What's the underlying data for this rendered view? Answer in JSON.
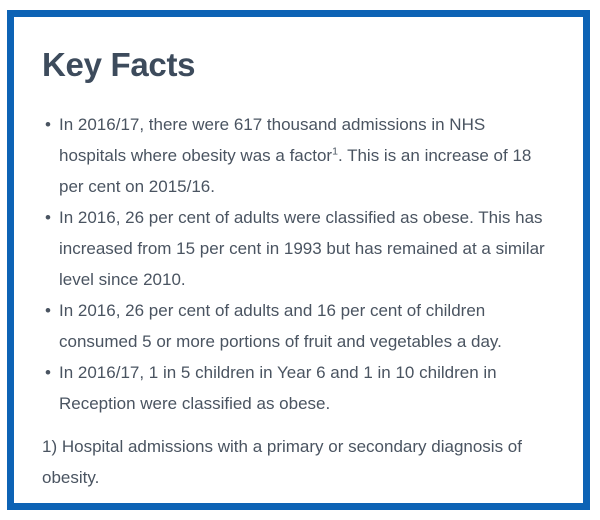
{
  "theme": {
    "accent": "#0d63b5",
    "title-color": "#3d4b5c",
    "text-color": "#4a5461"
  },
  "box": {
    "title": "Key Facts",
    "bullet_icon": "•",
    "facts": [
      {
        "text_before_sup": "In 2016/17, there were 617 thousand admissions in NHS hospitals where obesity was a factor",
        "superscript": "1",
        "text_after_sup": ". This is an increase of 18 per cent on 2015/16."
      },
      {
        "text": "In 2016, 26 per cent of adults were classified as obese. This has increased from 15 per cent in 1993 but has remained at a similar level since 2010."
      },
      {
        "text": "In 2016, 26 per cent of adults and 16 per cent of children consumed 5 or more portions of fruit and vegetables a day."
      },
      {
        "text": "In 2016/17, 1 in 5 children in Year 6 and 1 in 10 children in Reception were classified as obese."
      }
    ],
    "footnote": "1) Hospital admissions with a primary or secondary diagnosis of obesity."
  }
}
